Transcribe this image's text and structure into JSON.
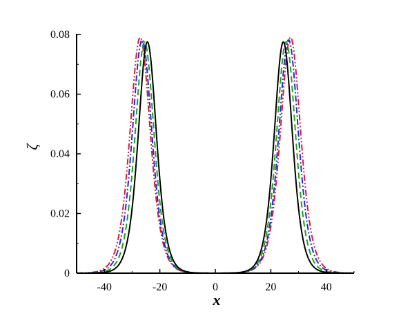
{
  "chart_data": {
    "type": "line",
    "title": "",
    "xlabel": "x",
    "ylabel": "ζ",
    "xlim": [
      -50,
      50
    ],
    "ylim": [
      0,
      0.08
    ],
    "x_ticks": [
      -40,
      -20,
      0,
      20,
      40
    ],
    "x_tick_labels": [
      "-40",
      "-20",
      "0",
      "20",
      "40"
    ],
    "y_ticks": [
      0,
      0.02,
      0.04,
      0.06,
      0.08
    ],
    "y_tick_labels": [
      "0",
      "0.02",
      "0.04",
      "0.06",
      "0.08"
    ],
    "grid": false,
    "legend": "none",
    "series": [
      {
        "color": "#000000",
        "dash": "solid",
        "peaks": [
          {
            "center": -24.5,
            "amplitude": 0.0775,
            "width": 4.4
          },
          {
            "center": 24.5,
            "amplitude": 0.0775,
            "width": 4.4
          }
        ]
      },
      {
        "color": "#1f9f1f",
        "dash": "dash",
        "peaks": [
          {
            "center": -25.5,
            "amplitude": 0.0775,
            "width": 4.6
          },
          {
            "center": 25.5,
            "amplitude": 0.0775,
            "width": 4.6
          }
        ]
      },
      {
        "color": "#2a2acc",
        "dash": "dashdot",
        "peaks": [
          {
            "center": -26.4,
            "amplitude": 0.0782,
            "width": 4.75
          },
          {
            "center": 26.4,
            "amplitude": 0.0782,
            "width": 4.75
          }
        ]
      },
      {
        "color": "#d0203a",
        "dash": "dashdotdot",
        "peaks": [
          {
            "center": -27.1,
            "amplitude": 0.079,
            "width": 4.9
          },
          {
            "center": 27.1,
            "amplitude": 0.079,
            "width": 4.9
          }
        ]
      }
    ]
  }
}
